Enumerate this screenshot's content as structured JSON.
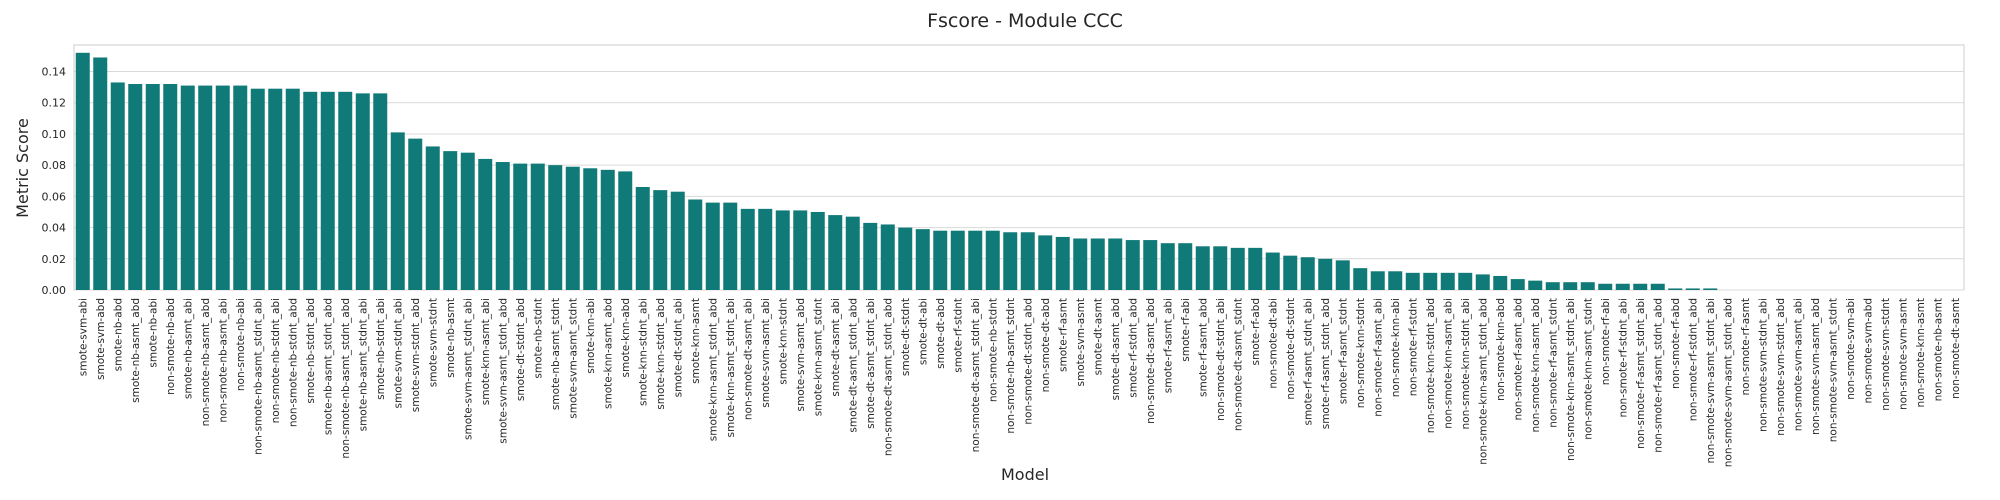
{
  "chart_data": {
    "type": "bar",
    "title": "Fscore - Module CCC",
    "xlabel": "Model",
    "ylabel": "Metric Score",
    "color": "#107a78",
    "grid": true,
    "categories": [
      "smote-svm-abi",
      "smote-svm-abd",
      "smote-nb-abd",
      "smote-nb-asmt_abd",
      "smote-nb-abi",
      "non-smote-nb-abd",
      "smote-nb-asmt_abi",
      "non-smote-nb-asmt_abd",
      "non-smote-nb-asmt_abi",
      "non-smote-nb-abi",
      "non-smote-nb-asmt_stdnt_abi",
      "non-smote-nb-stdnt_abi",
      "non-smote-nb-stdnt_abd",
      "smote-nb-stdnt_abd",
      "smote-nb-asmt_stdnt_abd",
      "non-smote-nb-asmt_stdnt_abd",
      "smote-nb-asmt_stdnt_abi",
      "smote-nb-stdnt_abi",
      "smote-svm-stdnt_abi",
      "smote-svm-stdnt_abd",
      "smote-svm-stdnt",
      "smote-nb-asmt",
      "smote-svm-asmt_stdnt_abi",
      "smote-knn-asmt_abi",
      "smote-svm-asmt_stdnt_abd",
      "smote-dt-stdnt_abd",
      "smote-nb-stdnt",
      "smote-nb-asmt_stdnt",
      "smote-svm-asmt_stdnt",
      "smote-knn-abi",
      "smote-knn-asmt_abd",
      "smote-knn-abd",
      "smote-knn-stdnt_abi",
      "smote-knn-stdnt_abd",
      "smote-dt-stdnt_abi",
      "smote-knn-asmt",
      "smote-knn-asmt_stdnt_abd",
      "smote-knn-asmt_stdnt_abi",
      "non-smote-dt-asmt_abi",
      "smote-svm-asmt_abi",
      "smote-knn-stdnt",
      "smote-svm-asmt_abd",
      "smote-knn-asmt_stdnt",
      "smote-dt-asmt_abi",
      "smote-dt-asmt_stdnt_abd",
      "smote-dt-asmt_stdnt_abi",
      "non-smote-dt-asmt_stdnt_abd",
      "smote-dt-stdnt",
      "smote-dt-abi",
      "smote-dt-abd",
      "smote-rf-stdnt",
      "non-smote-dt-asmt_stdnt_abi",
      "non-smote-nb-stdnt",
      "non-smote-nb-asmt_stdnt",
      "non-smote-dt-stdnt_abd",
      "non-smote-dt-abd",
      "smote-rf-asmt",
      "smote-svm-asmt",
      "smote-dt-asmt",
      "smote-dt-asmt_abd",
      "smote-rf-stdnt_abd",
      "non-smote-dt-asmt_abd",
      "smote-rf-asmt_abi",
      "smote-rf-abi",
      "smote-rf-asmt_abd",
      "non-smote-dt-stdnt_abi",
      "non-smote-dt-asmt_stdnt",
      "smote-rf-abd",
      "non-smote-dt-abi",
      "non-smote-dt-stdnt",
      "smote-rf-asmt_stdnt_abi",
      "smote-rf-asmt_stdnt_abd",
      "smote-rf-asmt_stdnt",
      "non-smote-knn-stdnt",
      "non-smote-rf-asmt_abi",
      "non-smote-knn-abi",
      "non-smote-rf-stdnt",
      "non-smote-knn-stdnt_abd",
      "non-smote-knn-asmt_abi",
      "non-smote-knn-stdnt_abi",
      "non-smote-knn-asmt_stdnt_abd",
      "non-smote-knn-abd",
      "non-smote-rf-asmt_abd",
      "non-smote-knn-asmt_abd",
      "non-smote-rf-asmt_stdnt",
      "non-smote-knn-asmt_stdnt_abi",
      "non-smote-knn-asmt_stdnt",
      "non-smote-rf-abi",
      "non-smote-rf-stdnt_abi",
      "non-smote-rf-asmt_stdnt_abi",
      "non-smote-rf-asmt_stdnt_abd",
      "non-smote-rf-abd",
      "non-smote-rf-stdnt_abd",
      "non-smote-svm-asmt_stdnt_abi",
      "non-smote-svm-asmt_stdnt_abd",
      "non-smote-rf-asmt",
      "non-smote-svm-stdnt_abi",
      "non-smote-svm-stdnt_abd",
      "non-smote-svm-asmt_abi",
      "non-smote-svm-asmt_abd",
      "non-smote-svm-asmt_stdnt",
      "non-smote-svm-abi",
      "non-smote-svm-abd",
      "non-smote-svm-stdnt",
      "non-smote-svm-asmt",
      "non-smote-knn-asmt",
      "non-smote-nb-asmt",
      "non-smote-dt-asmt"
    ],
    "values": [
      0.152,
      0.149,
      0.133,
      0.132,
      0.132,
      0.132,
      0.131,
      0.131,
      0.131,
      0.131,
      0.129,
      0.129,
      0.129,
      0.127,
      0.127,
      0.127,
      0.126,
      0.126,
      0.101,
      0.097,
      0.092,
      0.089,
      0.088,
      0.084,
      0.082,
      0.081,
      0.081,
      0.08,
      0.079,
      0.078,
      0.077,
      0.076,
      0.066,
      0.064,
      0.063,
      0.058,
      0.056,
      0.056,
      0.052,
      0.052,
      0.051,
      0.051,
      0.05,
      0.048,
      0.047,
      0.043,
      0.042,
      0.04,
      0.039,
      0.038,
      0.038,
      0.038,
      0.038,
      0.037,
      0.037,
      0.035,
      0.034,
      0.033,
      0.033,
      0.033,
      0.032,
      0.032,
      0.03,
      0.03,
      0.028,
      0.028,
      0.027,
      0.027,
      0.024,
      0.022,
      0.021,
      0.02,
      0.019,
      0.014,
      0.012,
      0.012,
      0.011,
      0.011,
      0.011,
      0.011,
      0.01,
      0.009,
      0.007,
      0.006,
      0.005,
      0.005,
      0.005,
      0.004,
      0.004,
      0.004,
      0.004,
      0.001,
      0.001,
      0.001,
      0,
      0,
      0,
      0,
      0,
      0,
      0,
      0,
      0,
      0,
      0,
      0,
      0,
      0
    ],
    "ylim": [
      0,
      0.157
    ],
    "yticks": [
      {
        "value": 0,
        "label": "0.00"
      },
      {
        "value": 0.02,
        "label": "0.02"
      },
      {
        "value": 0.04,
        "label": "0.04"
      },
      {
        "value": 0.06,
        "label": "0.06"
      },
      {
        "value": 0.08,
        "label": "0.08"
      },
      {
        "value": 0.1,
        "label": "0.10"
      },
      {
        "value": 0.12,
        "label": "0.12"
      },
      {
        "value": 0.14,
        "label": "0.14"
      }
    ]
  }
}
